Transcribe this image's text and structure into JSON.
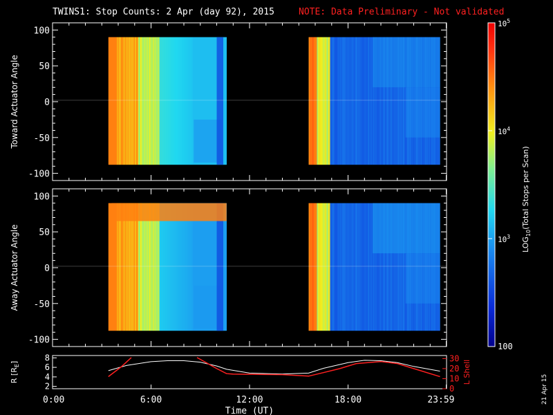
{
  "title": {
    "main": "TWINS1: Stop Counts:  2 Apr (day  92), 2015",
    "note": "NOTE: Data Preliminary - Not validated",
    "note_color": "#ff2020"
  },
  "chart_data": [
    {
      "type": "heatmap",
      "name": "toward",
      "ylabel": "Toward Actuator Angle",
      "ylim": [
        -110,
        110
      ],
      "yticks": [
        100,
        50,
        0,
        -50,
        -100
      ],
      "x_range_hours": [
        0,
        24
      ],
      "data_segments_hours": [
        [
          3.4,
          10.6
        ],
        [
          15.6,
          23.6
        ]
      ],
      "angle_range": [
        -88,
        90
      ]
    },
    {
      "type": "heatmap",
      "name": "away",
      "ylabel": "Away Actuator Angle",
      "ylim": [
        -110,
        110
      ],
      "yticks": [
        100,
        50,
        0,
        -50,
        -100
      ],
      "x_range_hours": [
        0,
        24
      ],
      "data_segments_hours": [
        [
          3.4,
          10.6
        ],
        [
          15.6,
          23.6
        ]
      ],
      "angle_range": [
        -88,
        90
      ]
    },
    {
      "type": "line",
      "name": "orbit",
      "ylabel_left": "R [R",
      "ylabel_left_sub": "E",
      "ylabel_left_end": "]",
      "ylabel_right": "L Shell",
      "ylim_left": [
        1.5,
        8.5
      ],
      "ylim_right": [
        0,
        33
      ],
      "yticks_left": [
        8,
        6,
        4,
        2
      ],
      "yticks_right": [
        30,
        20,
        10,
        0
      ],
      "xlabel": "Time (UT)",
      "xticks": [
        "0:00",
        "6:00",
        "12:00",
        "18:00",
        "23:59"
      ],
      "xtick_hours": [
        0,
        6,
        12,
        18,
        23.98
      ],
      "series": [
        {
          "name": "R",
          "color": "#ffffff",
          "x": [
            3.4,
            4.5,
            6,
            7,
            8,
            9,
            10,
            10.6,
            12,
            14,
            15.6,
            16.5,
            18,
            19,
            20,
            21,
            22,
            23.6
          ],
          "y": [
            5.3,
            6.4,
            7.2,
            7.4,
            7.4,
            7.1,
            6.3,
            5.6,
            4.8,
            4.6,
            4.8,
            5.8,
            7.0,
            7.5,
            7.4,
            7.0,
            6.2,
            5.2
          ]
        },
        {
          "name": "L Shell",
          "color": "#ff2020",
          "segments": [
            {
              "x": [
                3.4,
                4.2,
                4.8
              ],
              "y": [
                12,
                22,
                31
              ]
            },
            {
              "x": [
                8.8,
                10,
                10.6,
                11,
                14,
                15.6,
                16.5,
                17.5,
                18.5,
                20,
                21,
                22,
                23.6
              ],
              "y": [
                31,
                20,
                15,
                14.5,
                14,
                12.5,
                16,
                20,
                25,
                27,
                25,
                20,
                12
              ]
            }
          ]
        }
      ]
    }
  ],
  "colorbar": {
    "label_log": "LOG",
    "label_sub": "10",
    "label_rest": "(Total Stops per Scan)",
    "ticks": [
      {
        "base": "10",
        "exp": "5",
        "value": 100000
      },
      {
        "base": "10",
        "exp": "4",
        "value": 10000
      },
      {
        "base": "10",
        "exp": "3",
        "value": 1000
      }
    ],
    "bottom_label": "100",
    "log_range": [
      2,
      5
    ]
  },
  "date_stamp": "21 Apr 15"
}
